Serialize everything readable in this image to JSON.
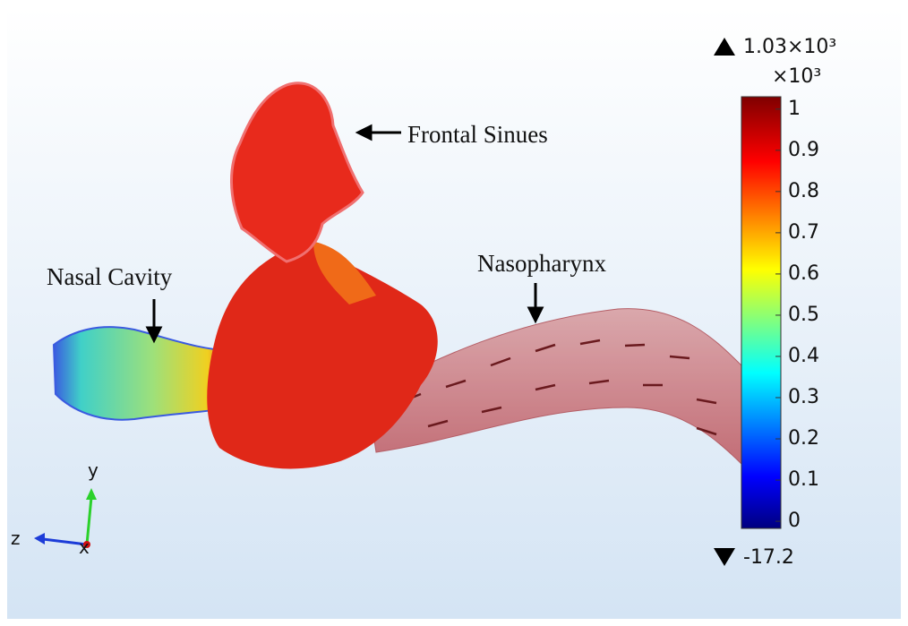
{
  "annotations": {
    "frontal": "Frontal Sinues",
    "nasal": "Nasal Cavity",
    "naso": "Nasopharynx"
  },
  "colorbar": {
    "max_label": "1.03×10³",
    "multiplier": "×10³",
    "min_label": "-17.2",
    "clim": [
      -0.0172,
      1.03
    ],
    "ticks": [
      0,
      0.1,
      0.2,
      0.3,
      0.4,
      0.5,
      0.6,
      0.7,
      0.8,
      0.9,
      1
    ]
  },
  "triad": {
    "y": "y",
    "z": "z",
    "x": "x"
  }
}
